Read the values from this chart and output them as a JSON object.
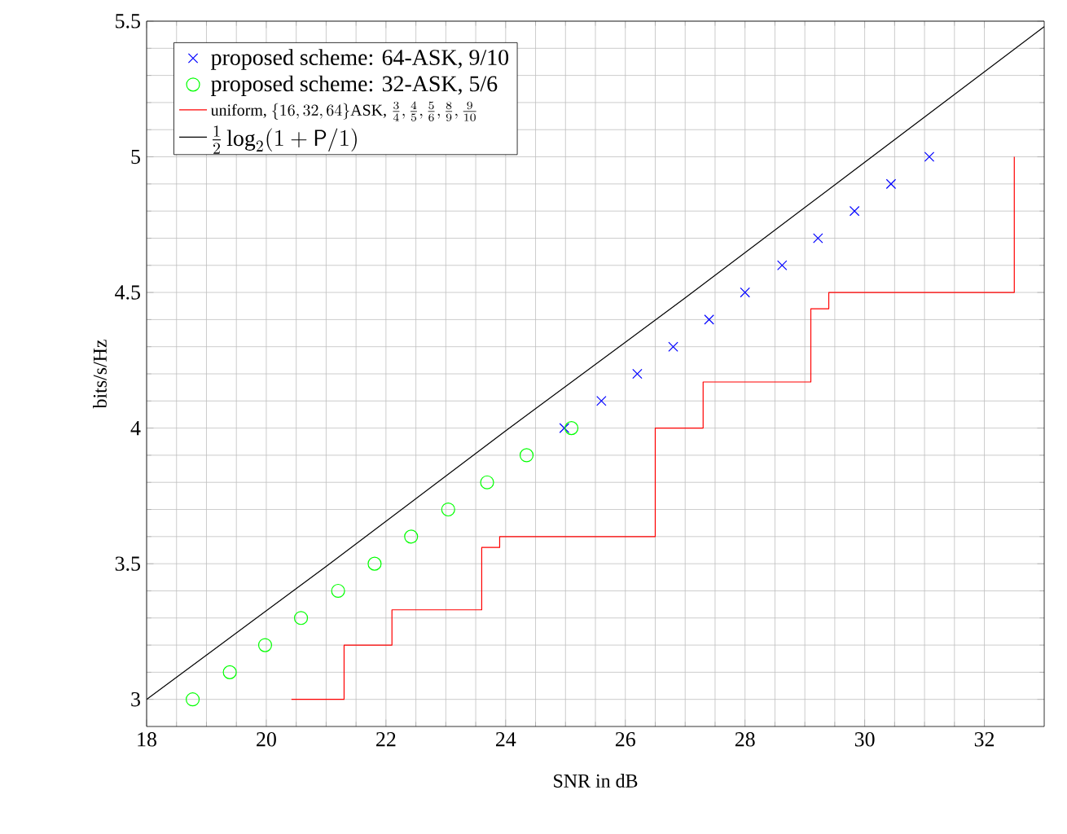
{
  "chart_data": {
    "type": "scatter",
    "xlabel": "SNR in dB",
    "ylabel": "bits/s/Hz",
    "xlim": [
      18,
      33
    ],
    "ylim": [
      2.9,
      5.5
    ],
    "xticks": [
      18,
      20,
      22,
      24,
      26,
      28,
      30,
      32
    ],
    "yticks": [
      3,
      3.5,
      4,
      4.5,
      5,
      5.5
    ],
    "grid": true,
    "legend": "top left",
    "series": [
      {
        "name": "\\text{proposed scheme: 64-ASK, 9/10}",
        "color": "#0000ff",
        "marker": "cross",
        "x": [
          24.98,
          25.6,
          26.2,
          26.8,
          27.4,
          28.0,
          28.62,
          29.22,
          29.83,
          30.44,
          31.08
        ],
        "values": [
          4.0,
          4.1,
          4.2,
          4.3,
          4.4,
          4.5,
          4.6,
          4.7,
          4.8,
          4.9,
          5.0
        ]
      },
      {
        "name": "\\text{proposed scheme: 32-ASK, 5/6}",
        "color": "#00ff00",
        "marker": "circle",
        "x": [
          18.77,
          19.39,
          19.98,
          20.58,
          21.2,
          21.81,
          22.42,
          23.04,
          23.69,
          24.35,
          25.1
        ],
        "values": [
          3.0,
          3.1,
          3.2,
          3.3,
          3.4,
          3.5,
          3.6,
          3.7,
          3.8,
          3.9,
          4.0
        ]
      },
      {
        "name": "\\text{uniform, }\\{16, 32, 64\\}\\text{ASK, }\\frac{3}{4}, \\frac{4}{5}, \\frac{5}{6}, \\frac{8}{9}, \\frac{9}{10}",
        "color": "#ff0000",
        "type": "step",
        "marker": "none",
        "x": [
          20.42,
          21.3,
          22.1,
          23.6,
          23.9,
          26.5,
          27.3,
          29.1,
          29.4,
          32.5
        ],
        "values": [
          3.0,
          3.2,
          3.33,
          3.56,
          3.6,
          4.0,
          4.17,
          4.44,
          4.5,
          5.0
        ]
      },
      {
        "name": "\\frac{1}{2}\\log_2(1+\\mathsf{P}/1)",
        "color": "#000000",
        "type": "line",
        "marker": "none",
        "x": [
          18,
          21,
          24,
          27,
          30,
          33
        ],
        "values": [
          3.0,
          3.49,
          3.99,
          4.48,
          4.98,
          5.48
        ]
      }
    ]
  }
}
